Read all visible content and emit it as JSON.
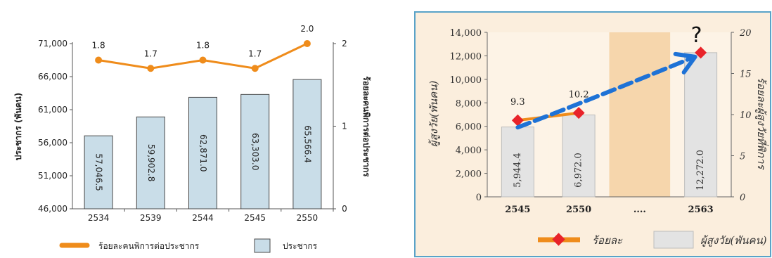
{
  "chart_data": [
    {
      "type": "bar",
      "categories": [
        "2534",
        "2539",
        "2544",
        "2545",
        "2550"
      ],
      "series": [
        {
          "name": "ประชากร",
          "kind": "bar",
          "axis": "left",
          "values": [
            57046.5,
            59902.8,
            62871.0,
            63303.0,
            65566.4
          ],
          "labels": [
            "57,046.5",
            "59,902.8",
            "62,871.0",
            "63,303.0",
            "65,566.4"
          ],
          "color": "#c9dde8"
        },
        {
          "name": "ร้อยละคนพิการต่อประชากร",
          "kind": "line",
          "axis": "right",
          "values": [
            1.8,
            1.7,
            1.8,
            1.7,
            2.0
          ],
          "labels": [
            "1.8",
            "1.7",
            "1.8",
            "1.7",
            "2.0"
          ],
          "color": "#ef8c1b"
        }
      ],
      "ylabel": "ประชากร (พันคน)",
      "y2label": "ร้อยละคนพิการต่อประชากร",
      "ylim": [
        46000,
        71000
      ],
      "yticks": [
        "46,000",
        "51,000",
        "56,000",
        "61,000",
        "66,000",
        "71,000"
      ],
      "y2lim": [
        0,
        2
      ],
      "y2ticks": [
        "0",
        "1",
        "2"
      ],
      "legend": "bottom"
    },
    {
      "type": "bar",
      "categories": [
        "2545",
        "2550",
        "....",
        "2563"
      ],
      "series": [
        {
          "name": "ผู้สูงวัย(พันคน)",
          "kind": "bar",
          "axis": "left",
          "values": [
            5944.4,
            6972.0,
            null,
            12272.0
          ],
          "labels": [
            "5,944.4",
            "6,972.0",
            "",
            "12,272.0"
          ],
          "color": "#e3e3e3"
        },
        {
          "name": "ร้อยละ",
          "kind": "line",
          "axis": "right",
          "values": [
            9.3,
            10.2,
            null,
            null
          ],
          "labels": [
            "9.3",
            "10.2",
            "",
            ""
          ],
          "color": "#ef8c1b"
        }
      ],
      "projection_marker": {
        "category": "2563",
        "value": 12272.0,
        "label": "?"
      },
      "ylabel": "ผู้สูงวัย(พันคน)",
      "y2label": "ร้อยละผู้สูงวัยที่พิการ",
      "ylim": [
        0,
        14000
      ],
      "yticks": [
        "0",
        "2,000",
        "4,000",
        "6,000",
        "8,000",
        "10,000",
        "12,000",
        "14,000"
      ],
      "y2lim": [
        0,
        20
      ],
      "y2ticks": [
        "0",
        "5",
        "10",
        "15",
        "20"
      ],
      "legend": "bottom",
      "colors": {
        "background": "#fbeedd",
        "stripe": "#f6d6ac",
        "frame": "#5aa3c8",
        "trend": "#1e72d6",
        "marker": "#e8232a"
      }
    }
  ]
}
